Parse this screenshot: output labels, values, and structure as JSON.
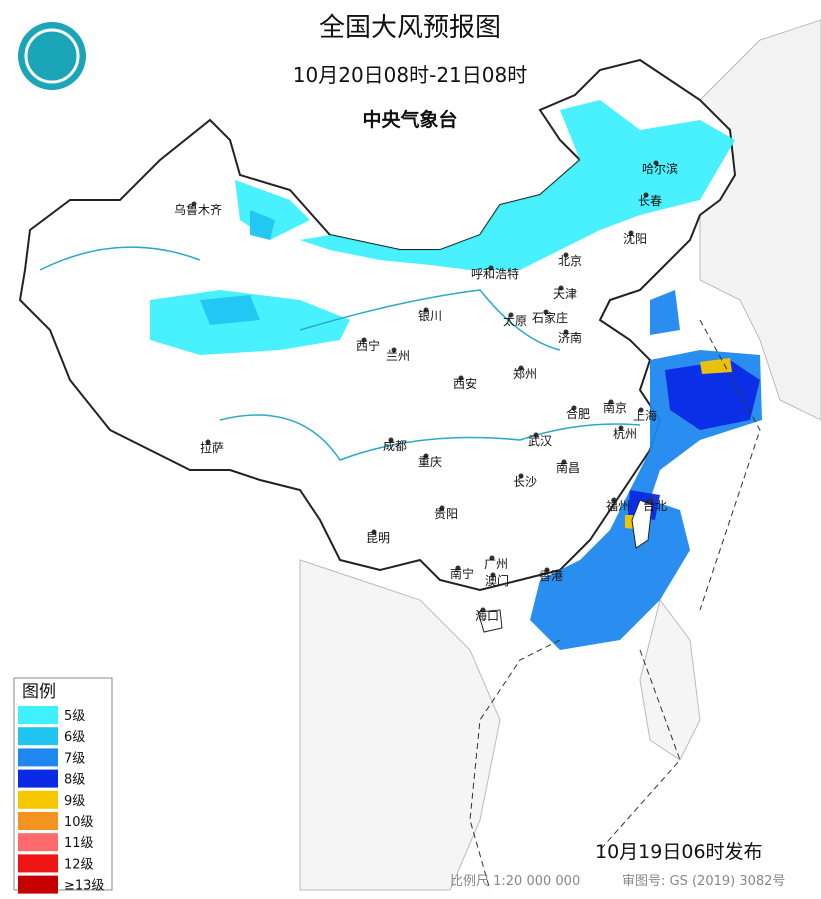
{
  "header": {
    "title": "全国大风预报图",
    "period": "10月20日08时-21日08时",
    "issuer": "中央气象台"
  },
  "legend": {
    "title": "图例",
    "items": [
      {
        "label": "5级",
        "color": "#3ff0ff"
      },
      {
        "label": "6级",
        "color": "#22c4f2"
      },
      {
        "label": "7级",
        "color": "#1e88ee"
      },
      {
        "label": "8级",
        "color": "#0a2ae6"
      },
      {
        "label": "9级",
        "color": "#f6c800"
      },
      {
        "label": "10级",
        "color": "#f59320"
      },
      {
        "label": "11级",
        "color": "#ff6b6b"
      },
      {
        "label": "12级",
        "color": "#ee1414"
      },
      {
        "label": "≥13级",
        "color": "#c40000"
      }
    ]
  },
  "cities": [
    "乌鲁木齐",
    "哈尔滨",
    "长春",
    "沈阳",
    "呼和浩特",
    "北京",
    "天津",
    "银川",
    "太原",
    "石家庄",
    "济南",
    "西宁",
    "兰州",
    "郑州",
    "西安",
    "合肥",
    "南京",
    "上海",
    "杭州",
    "成都",
    "武汉",
    "拉萨",
    "重庆",
    "南昌",
    "长沙",
    "福州",
    "台北",
    "贵阳",
    "昆明",
    "广州",
    "南宁",
    "澳门",
    "香港",
    "海口"
  ],
  "footer": {
    "issued": "10月19日06时发布",
    "scale": "比例尺 1:20 000 000",
    "map_number": "审图号: GS (2019) 3082号"
  }
}
